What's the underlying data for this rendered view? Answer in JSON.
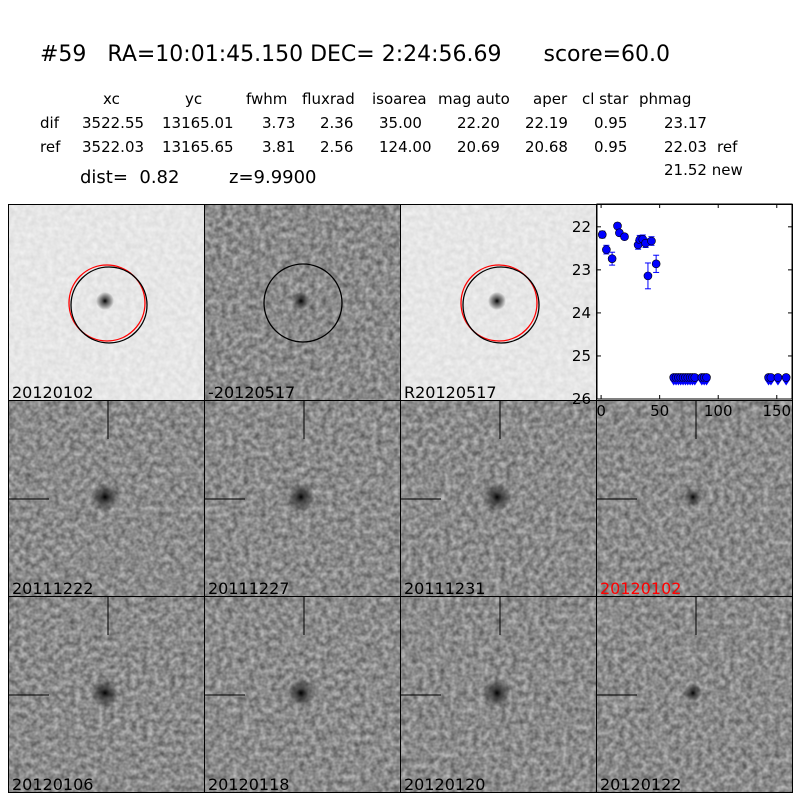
{
  "title": {
    "id": "#59",
    "ra": "RA=10:01:45.150",
    "dec": "DEC= 2:24:56.69",
    "score": "score=60.0"
  },
  "table": {
    "headers": [
      "xc",
      "yc",
      "fwhm",
      "fluxrad",
      "isoarea",
      "mag auto",
      "aper",
      "cl star",
      "phmag"
    ],
    "rows": [
      {
        "label": "dif",
        "values": [
          "3522.55",
          "13165.01",
          "3.73",
          "2.36",
          "35.00",
          "22.20",
          "22.19",
          "0.95",
          "23.17"
        ],
        "suffix": ""
      },
      {
        "label": "ref",
        "values": [
          "3522.03",
          "13165.65",
          "3.81",
          "2.56",
          "124.00",
          "20.69",
          "20.68",
          "0.95",
          "22.03"
        ],
        "suffix": "ref"
      }
    ],
    "new_mag": "21.52 new",
    "dist": "dist=  0.82",
    "z": "z=9.9900"
  },
  "panels": [
    {
      "label": "20120102",
      "type": "new",
      "circles": [
        "#ff0000",
        "#000000"
      ]
    },
    {
      "label": "-20120517",
      "type": "diff",
      "circles": [
        "#000000"
      ]
    },
    {
      "label": "R20120517",
      "type": "ref",
      "circles": [
        "#ff0000",
        "#000000"
      ]
    },
    {
      "label": "",
      "type": "chart"
    },
    {
      "label": "20111222",
      "type": "stamp"
    },
    {
      "label": "20111227",
      "type": "stamp"
    },
    {
      "label": "20111231",
      "type": "stamp"
    },
    {
      "label": "20120102",
      "type": "stamp-clean",
      "label_color": "#ff0000"
    },
    {
      "label": "20120106",
      "type": "stamp"
    },
    {
      "label": "20120118",
      "type": "stamp"
    },
    {
      "label": "20120120",
      "type": "stamp"
    },
    {
      "label": "20120122",
      "type": "stamp-clean"
    }
  ],
  "chart_data": {
    "type": "scatter",
    "xlim": [
      -3.5,
      163
    ],
    "ylim": [
      26,
      21.47
    ],
    "y_inverted": true,
    "xticks": [
      "0",
      "50",
      "100",
      "150"
    ],
    "yticks": [
      "22",
      "23",
      "24",
      "25",
      "26"
    ],
    "marker_color": "#0000ff",
    "detections": {
      "x": [
        1,
        4.5,
        9.4,
        14,
        15.6,
        20,
        31.6,
        33,
        35.6,
        38,
        40,
        43,
        47
      ],
      "y": [
        22.18,
        22.53,
        22.74,
        21.98,
        22.14,
        22.23,
        22.42,
        22.3,
        22.29,
        22.38,
        23.14,
        22.33,
        22.86
      ],
      "yerr": [
        0.08,
        0.1,
        0.15,
        0.07,
        0.06,
        0.06,
        0.1,
        0.1,
        0.1,
        0.1,
        0.3,
        0.1,
        0.2
      ]
    },
    "upper_limits": {
      "x": [
        62,
        64,
        66,
        68,
        70,
        72,
        74,
        76,
        78,
        80,
        86,
        88,
        90,
        143,
        145,
        151,
        158
      ],
      "y": 25.5
    }
  }
}
